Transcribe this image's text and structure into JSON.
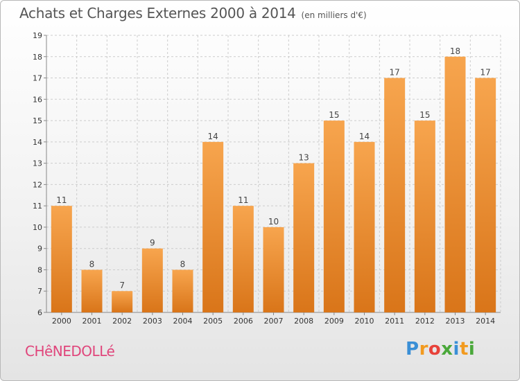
{
  "title": {
    "main": "Achats et Charges Externes 2000 à 2014",
    "unit": "(en milliers d'€)"
  },
  "place": "CHêNEDOLLé",
  "logo": {
    "letters": [
      "P",
      "r",
      "o",
      "x",
      "i",
      "t",
      "i"
    ],
    "colors": [
      "#3a8fd6",
      "#f29a1f",
      "#e8423a",
      "#4aa83a",
      "#3a8fd6",
      "#f29a1f",
      "#4aa83a"
    ]
  },
  "colors": {
    "bar_light": "#f7a54e",
    "bar_dark": "#d97519",
    "grid": "#cccccc"
  },
  "chart_data": {
    "type": "bar",
    "categories": [
      "2000",
      "2001",
      "2002",
      "2003",
      "2004",
      "2005",
      "2006",
      "2007",
      "2008",
      "2009",
      "2010",
      "2011",
      "2012",
      "2013",
      "2014"
    ],
    "values": [
      11,
      8,
      7,
      9,
      8,
      14,
      11,
      10,
      13,
      15,
      14,
      17,
      15,
      18,
      17
    ],
    "ylim": [
      6,
      19
    ],
    "yticks": [
      6,
      7,
      8,
      9,
      10,
      11,
      12,
      13,
      14,
      15,
      16,
      17,
      18,
      19
    ],
    "grid": true,
    "title": "Achats et Charges Externes 2000 à 2014",
    "xlabel": "",
    "ylabel": ""
  }
}
